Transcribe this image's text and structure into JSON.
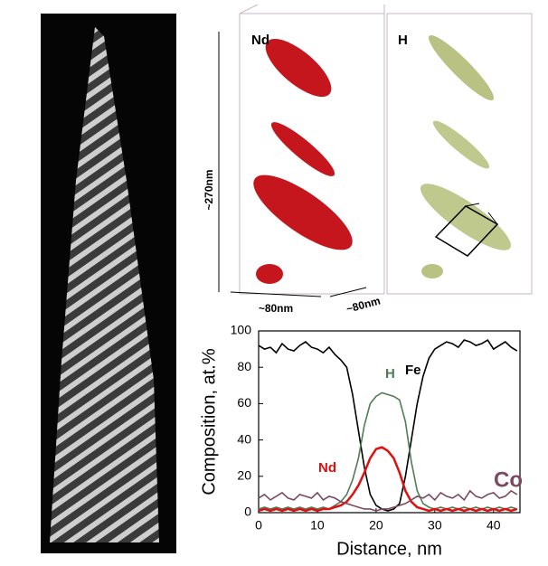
{
  "figure": {
    "panel_labels": [
      "Nd",
      "H"
    ],
    "dimensions": [
      "~270nm",
      "~80nm",
      "~80nm"
    ]
  },
  "chart_data": {
    "type": "line",
    "xlabel": "Distance, nm",
    "ylabel": "Composition, at.%",
    "x": [
      0,
      1,
      2,
      3,
      4,
      5,
      6,
      7,
      8,
      9,
      10,
      11,
      12,
      13,
      14,
      15,
      16,
      17,
      18,
      19,
      20,
      21,
      22,
      23,
      24,
      25,
      26,
      27,
      28,
      29,
      30,
      31,
      32,
      33,
      34,
      35,
      36,
      37,
      38,
      39,
      40,
      41,
      42,
      43,
      44
    ],
    "series": [
      {
        "name": "Fe",
        "color": "#000000",
        "values": [
          92,
          90,
          91,
          88,
          93,
          90,
          89,
          92,
          94,
          91,
          90,
          88,
          91,
          87,
          84,
          80,
          65,
          45,
          25,
          10,
          4,
          2,
          1,
          2,
          5,
          20,
          40,
          60,
          75,
          85,
          90,
          92,
          94,
          93,
          91,
          95,
          94,
          92,
          93,
          95,
          90,
          92,
          94,
          91,
          89
        ]
      },
      {
        "name": "H",
        "color": "#4f7d55",
        "values": [
          2,
          3,
          2,
          3,
          2,
          3,
          2,
          3,
          2,
          3,
          2,
          3,
          2,
          4,
          6,
          10,
          18,
          30,
          48,
          60,
          64,
          66,
          65,
          64,
          62,
          50,
          28,
          12,
          5,
          3,
          2,
          3,
          2,
          3,
          2,
          3,
          2,
          3,
          2,
          3,
          2,
          3,
          2,
          3,
          2
        ]
      },
      {
        "name": "Nd",
        "color": "#e01010",
        "values": [
          1,
          2,
          1,
          2,
          1,
          2,
          1,
          2,
          1,
          2,
          1,
          2,
          2,
          3,
          4,
          6,
          10,
          15,
          22,
          30,
          35,
          36,
          34,
          30,
          22,
          12,
          6,
          3,
          2,
          1,
          2,
          1,
          2,
          1,
          2,
          1,
          2,
          1,
          2,
          1,
          2,
          1,
          2,
          1,
          2
        ]
      },
      {
        "name": "Co",
        "color": "#7a4a60",
        "values": [
          8,
          10,
          7,
          9,
          11,
          8,
          7,
          10,
          9,
          8,
          11,
          7,
          9,
          8,
          6,
          5,
          4,
          3,
          2,
          2,
          1,
          2,
          2,
          3,
          4,
          5,
          7,
          9,
          8,
          10,
          7,
          11,
          9,
          8,
          10,
          7,
          12,
          9,
          8,
          10,
          11,
          8,
          9,
          12,
          10
        ]
      }
    ],
    "xlim": [
      0,
      44.5
    ],
    "ylim": [
      0,
      100
    ],
    "xticks": [
      0,
      10,
      20,
      30,
      40
    ],
    "yticks": [
      0,
      20,
      40,
      60,
      80,
      100
    ]
  }
}
